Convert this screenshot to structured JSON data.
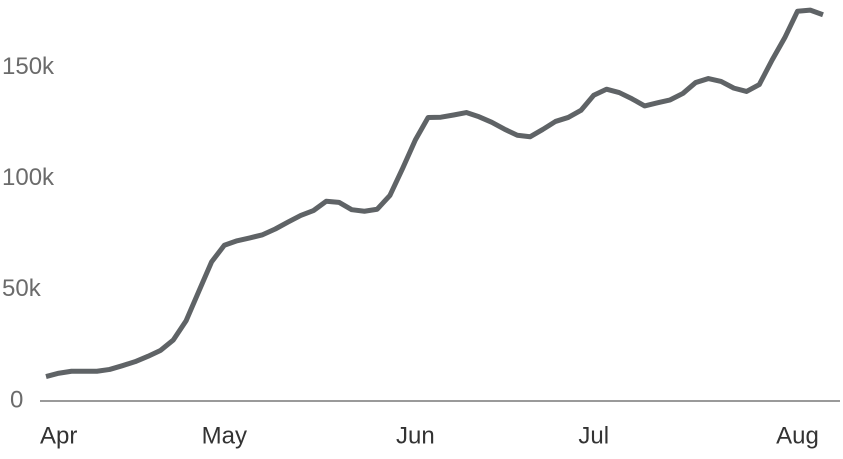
{
  "chart_data": {
    "type": "line",
    "categories": [
      null,
      "Apr",
      null,
      null,
      null,
      null,
      null,
      null,
      null,
      null,
      null,
      null,
      null,
      null,
      "May",
      null,
      null,
      null,
      null,
      null,
      null,
      null,
      null,
      null,
      null,
      null,
      null,
      null,
      null,
      "Jun",
      null,
      null,
      null,
      null,
      null,
      null,
      null,
      null,
      null,
      null,
      null,
      null,
      null,
      "Jul",
      null,
      null,
      null,
      null,
      null,
      null,
      null,
      null,
      null,
      null,
      null,
      null,
      null,
      null,
      null,
      "Aug",
      null,
      null
    ],
    "values": [
      11000,
      12500,
      13400,
      13400,
      13400,
      14200,
      15900,
      17700,
      20100,
      22800,
      27500,
      36100,
      49400,
      62600,
      70100,
      72100,
      73400,
      74800,
      77400,
      80500,
      83500,
      85700,
      89900,
      89400,
      86100,
      85400,
      86300,
      92500,
      104700,
      117500,
      127600,
      127700,
      128700,
      129800,
      127900,
      125400,
      122300,
      119600,
      118900,
      122200,
      125800,
      127600,
      130800,
      137600,
      140300,
      138800,
      136000,
      132800,
      134200,
      135500,
      138400,
      143300,
      145100,
      143800,
      140800,
      139300,
      142400,
      153400,
      163500,
      175400,
      175900,
      173800
    ],
    "color": "#5f6366",
    "ylim": [
      0,
      180000
    ],
    "yticks": [
      0,
      {
        "value": 50000,
        "label": "50k"
      },
      {
        "value": 100000,
        "label": "100k"
      },
      {
        "value": 150000,
        "label": "150k"
      }
    ],
    "grid": false
  }
}
